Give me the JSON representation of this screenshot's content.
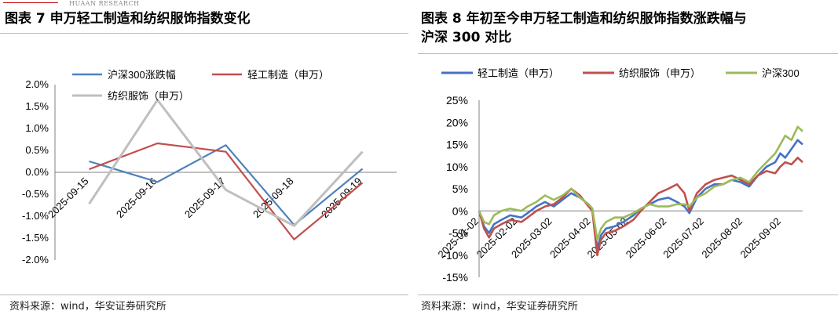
{
  "left_panel": {
    "brand": "HUAAN RESEARCH",
    "title": "图表 7 申万轻工制造和纺织服饰指数变化",
    "source": "资料来源：wind，华安证券研究所"
  },
  "right_panel": {
    "title_line1": "图表 8 年初至今申万轻工制造和纺织服饰指数涨跌幅与",
    "title_line2": "沪深 300 对比",
    "source": "资料来源：wind，华安证券研究所"
  },
  "chart_data": [
    {
      "type": "line",
      "title": "",
      "categories": [
        "2025-09-15",
        "2025-09-16",
        "2025-09-17",
        "2025-09-18",
        "2025-09-19"
      ],
      "y_tick_labels": [
        "2.0%",
        "1.5%",
        "1.0%",
        "0.5%",
        "0.0%",
        "-0.5%",
        "-1.0%",
        "-1.5%",
        "-2.0%"
      ],
      "ylim": [
        -2.0,
        2.0
      ],
      "unit": "%",
      "legend_position": "top",
      "series": [
        {
          "name": "沪深300涨跌幅",
          "color": "#4F81BD",
          "values": [
            0.25,
            -0.22,
            0.62,
            -1.2,
            0.08
          ]
        },
        {
          "name": "轻工制造（申万）",
          "color": "#C0504D",
          "values": [
            0.07,
            0.66,
            0.47,
            -1.53,
            -0.24
          ]
        },
        {
          "name": "纺织服饰（申万）",
          "color": "#BFBFBF",
          "values": [
            -0.72,
            1.65,
            -0.4,
            -1.22,
            0.47
          ]
        }
      ]
    },
    {
      "type": "line",
      "title": "",
      "x_tick_labels": [
        "2025-01-02",
        "2025-02-02",
        "2025-03-02",
        "2025-04-02",
        "2025-05-02",
        "2025-06-02",
        "2025-07-02",
        "2025-08-02",
        "2025-09-02"
      ],
      "y_tick_labels": [
        "25%",
        "20%",
        "15%",
        "10%",
        "5%",
        "0%",
        "-5%",
        "-10%",
        "-15%"
      ],
      "ylim": [
        -15,
        25
      ],
      "unit": "%",
      "legend_position": "top",
      "series": [
        {
          "name": "轻工制造（申万）",
          "color": "#4472C4",
          "points": [
            [
              "2025-01-02",
              0
            ],
            [
              "2025-01-06",
              -3.5
            ],
            [
              "2025-01-10",
              -5
            ],
            [
              "2025-01-14",
              -3
            ],
            [
              "2025-01-20",
              -2
            ],
            [
              "2025-01-27",
              -1
            ],
            [
              "2025-02-05",
              -1.5
            ],
            [
              "2025-02-10",
              -0.5
            ],
            [
              "2025-02-17",
              1
            ],
            [
              "2025-02-24",
              2
            ],
            [
              "2025-03-03",
              1
            ],
            [
              "2025-03-10",
              2.5
            ],
            [
              "2025-03-17",
              4
            ],
            [
              "2025-03-24",
              3
            ],
            [
              "2025-03-31",
              1.5
            ],
            [
              "2025-04-03",
              0.5
            ],
            [
              "2025-04-07",
              -8.5
            ],
            [
              "2025-04-10",
              -5.5
            ],
            [
              "2025-04-14",
              -4
            ],
            [
              "2025-04-21",
              -3.5
            ],
            [
              "2025-04-28",
              -2.5
            ],
            [
              "2025-05-06",
              -1
            ],
            [
              "2025-05-12",
              0.5
            ],
            [
              "2025-05-19",
              1.5
            ],
            [
              "2025-05-26",
              2.5
            ],
            [
              "2025-06-03",
              3
            ],
            [
              "2025-06-10",
              2
            ],
            [
              "2025-06-16",
              1
            ],
            [
              "2025-06-20",
              -0.5
            ],
            [
              "2025-06-26",
              3
            ],
            [
              "2025-07-03",
              5
            ],
            [
              "2025-07-10",
              6
            ],
            [
              "2025-07-17",
              6
            ],
            [
              "2025-07-24",
              7
            ],
            [
              "2025-07-31",
              6.5
            ],
            [
              "2025-08-07",
              5.5
            ],
            [
              "2025-08-14",
              8
            ],
            [
              "2025-08-21",
              10
            ],
            [
              "2025-08-28",
              11
            ],
            [
              "2025-09-01",
              13
            ],
            [
              "2025-09-05",
              12
            ],
            [
              "2025-09-10",
              14
            ],
            [
              "2025-09-15",
              16
            ],
            [
              "2025-09-19",
              15
            ]
          ]
        },
        {
          "name": "纺织服饰（申万）",
          "color": "#C0504D",
          "points": [
            [
              "2025-01-02",
              0
            ],
            [
              "2025-01-06",
              -4
            ],
            [
              "2025-01-10",
              -6
            ],
            [
              "2025-01-14",
              -4
            ],
            [
              "2025-01-20",
              -3
            ],
            [
              "2025-01-27",
              -2
            ],
            [
              "2025-02-05",
              -2.5
            ],
            [
              "2025-02-10",
              -1.5
            ],
            [
              "2025-02-17",
              0
            ],
            [
              "2025-02-24",
              1
            ],
            [
              "2025-03-03",
              1.5
            ],
            [
              "2025-03-10",
              3
            ],
            [
              "2025-03-17",
              5
            ],
            [
              "2025-03-24",
              3.5
            ],
            [
              "2025-03-31",
              1
            ],
            [
              "2025-04-03",
              0
            ],
            [
              "2025-04-07",
              -10
            ],
            [
              "2025-04-10",
              -6.5
            ],
            [
              "2025-04-14",
              -5
            ],
            [
              "2025-04-21",
              -4.5
            ],
            [
              "2025-04-28",
              -3.5
            ],
            [
              "2025-05-06",
              -2
            ],
            [
              "2025-05-12",
              0
            ],
            [
              "2025-05-19",
              2
            ],
            [
              "2025-05-26",
              4
            ],
            [
              "2025-06-03",
              5
            ],
            [
              "2025-06-10",
              6
            ],
            [
              "2025-06-16",
              4
            ],
            [
              "2025-06-20",
              0
            ],
            [
              "2025-06-26",
              4
            ],
            [
              "2025-07-03",
              6
            ],
            [
              "2025-07-10",
              7
            ],
            [
              "2025-07-17",
              7.5
            ],
            [
              "2025-07-24",
              8
            ],
            [
              "2025-07-31",
              7
            ],
            [
              "2025-08-07",
              6
            ],
            [
              "2025-08-14",
              8
            ],
            [
              "2025-08-21",
              9
            ],
            [
              "2025-08-28",
              8.5
            ],
            [
              "2025-09-01",
              10
            ],
            [
              "2025-09-05",
              11
            ],
            [
              "2025-09-10",
              10.5
            ],
            [
              "2025-09-15",
              12
            ],
            [
              "2025-09-19",
              11
            ]
          ]
        },
        {
          "name": "沪深300",
          "color": "#9BBB59",
          "points": [
            [
              "2025-01-02",
              0
            ],
            [
              "2025-01-06",
              -2.5
            ],
            [
              "2025-01-10",
              -3
            ],
            [
              "2025-01-14",
              -1
            ],
            [
              "2025-01-20",
              0
            ],
            [
              "2025-01-27",
              0.5
            ],
            [
              "2025-02-05",
              0
            ],
            [
              "2025-02-10",
              1
            ],
            [
              "2025-02-17",
              2
            ],
            [
              "2025-02-24",
              3.5
            ],
            [
              "2025-03-03",
              2.5
            ],
            [
              "2025-03-10",
              3.5
            ],
            [
              "2025-03-17",
              5
            ],
            [
              "2025-03-24",
              3
            ],
            [
              "2025-03-31",
              1.5
            ],
            [
              "2025-04-03",
              0.5
            ],
            [
              "2025-04-07",
              -6.5
            ],
            [
              "2025-04-10",
              -4
            ],
            [
              "2025-04-14",
              -2.5
            ],
            [
              "2025-04-21",
              -1.5
            ],
            [
              "2025-04-28",
              -1.5
            ],
            [
              "2025-05-06",
              -0.5
            ],
            [
              "2025-05-12",
              0.5
            ],
            [
              "2025-05-19",
              1.5
            ],
            [
              "2025-05-26",
              1
            ],
            [
              "2025-06-03",
              1
            ],
            [
              "2025-06-10",
              1.5
            ],
            [
              "2025-06-16",
              1.5
            ],
            [
              "2025-06-20",
              1
            ],
            [
              "2025-06-26",
              3
            ],
            [
              "2025-07-03",
              4
            ],
            [
              "2025-07-10",
              5.5
            ],
            [
              "2025-07-17",
              6
            ],
            [
              "2025-07-24",
              7
            ],
            [
              "2025-07-31",
              7.5
            ],
            [
              "2025-08-07",
              6.5
            ],
            [
              "2025-08-14",
              9
            ],
            [
              "2025-08-21",
              11
            ],
            [
              "2025-08-28",
              13
            ],
            [
              "2025-09-01",
              15
            ],
            [
              "2025-09-05",
              17
            ],
            [
              "2025-09-10",
              16
            ],
            [
              "2025-09-15",
              19
            ],
            [
              "2025-09-19",
              18
            ]
          ]
        }
      ]
    }
  ]
}
